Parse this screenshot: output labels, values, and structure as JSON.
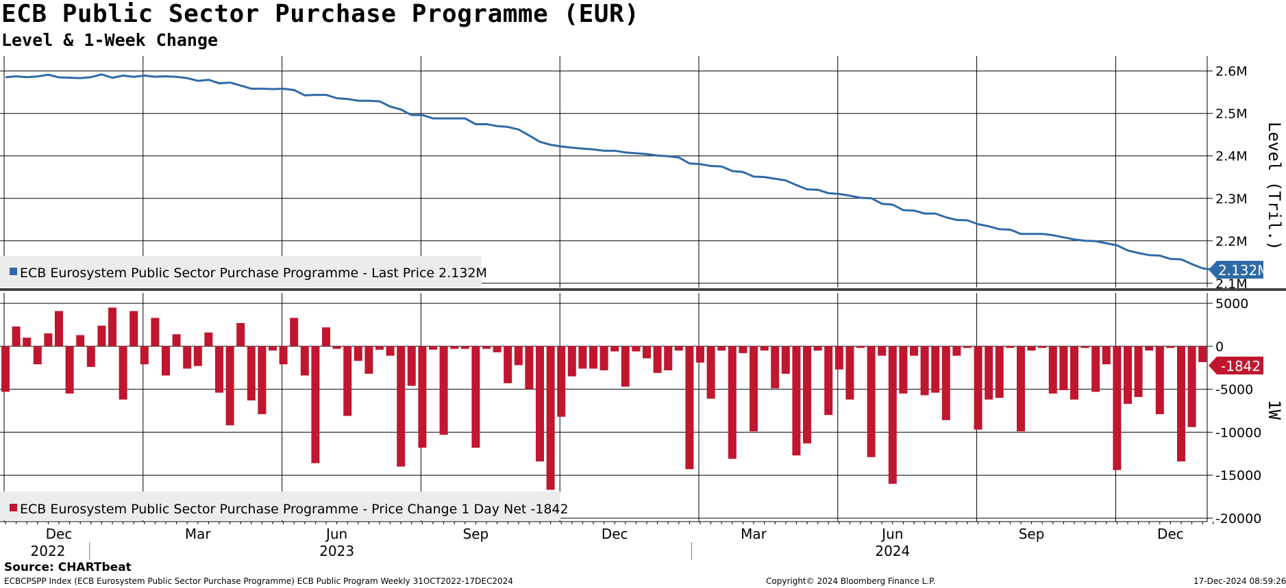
{
  "title": "ECB Public Sector Purchase Programme (EUR)",
  "subtitle": "Level & 1-Week Change",
  "source": "Source: CHARTbeat",
  "footer": {
    "left": "ECBCPSPP Index (ECB Eurosystem Public Sector Purchase Programme) ECB Public Program  Weekly 31OCT2022-17DEC2024",
    "center": "Copyright© 2024 Bloomberg Finance L.P.",
    "right": "17-Dec-2024 08:59:26"
  },
  "colors": {
    "level": "#2e6aa6",
    "change": "#c0162f",
    "grid": "#000000"
  },
  "chart_data": [
    {
      "type": "line",
      "ylabel": "Level (Tril.)",
      "ylim": [
        2.09,
        2.635
      ],
      "yticks": [
        2.1,
        2.2,
        2.3,
        2.4,
        2.5,
        2.6
      ],
      "ytick_labels": [
        "2.1M",
        "2.2M",
        "2.3M",
        "2.4M",
        "2.5M",
        "2.6M"
      ],
      "legend": "ECB Eurosystem Public Sector Purchase Programme - Last Price 2.132M",
      "last_value_label": "2.132M",
      "series": [
        {
          "name": "ECB Eurosystem Public Sector Purchase Programme",
          "values": [
            2.5852,
            2.5875,
            2.5855,
            2.5873,
            2.5912,
            2.585,
            2.5842,
            2.5832,
            2.5855,
            2.592,
            2.584,
            2.5892,
            2.5862,
            2.5892,
            2.5865,
            2.5875,
            2.5862,
            2.5832,
            2.5768,
            2.5792,
            2.571,
            2.5728,
            2.5658,
            2.5582,
            2.5582,
            2.5575,
            2.5582,
            2.5552,
            2.5428,
            2.5438,
            2.5438,
            2.5358,
            2.534,
            2.53,
            2.5298,
            2.5285,
            2.5162,
            2.5092,
            2.4962,
            2.4962,
            2.4882,
            2.4882,
            2.4882,
            2.4882,
            2.4745,
            2.4748,
            2.4702,
            2.4682,
            2.4622,
            2.4482,
            2.4332,
            2.4262,
            2.4222,
            2.4192,
            2.4172,
            2.4152,
            2.4122,
            2.4122,
            2.4082,
            2.4062,
            2.4042,
            2.4008,
            2.3992,
            2.3962,
            2.3822,
            2.3808,
            2.3762,
            2.3752,
            2.3642,
            2.3622,
            2.3512,
            2.3502,
            2.3462,
            2.3422,
            2.3312,
            2.3212,
            2.3202,
            2.3122,
            2.3102,
            2.3062,
            2.3012,
            2.3002,
            2.2872,
            2.2852,
            2.2722,
            2.2712,
            2.2642,
            2.2642,
            2.2552,
            2.2492,
            2.2482,
            2.2392,
            2.2342,
            2.2272,
            2.2262,
            2.2162,
            2.2162,
            2.2162,
            2.2132,
            2.2082,
            2.2032,
            2.2002,
            2.1992,
            2.1942,
            2.1892,
            2.1772,
            2.1712,
            2.1662,
            2.1652,
            2.1572,
            2.1562,
            2.1452,
            2.1352,
            2.132
          ]
        }
      ]
    },
    {
      "type": "bar",
      "ylabel": "1W",
      "ylim": [
        -20400,
        6200
      ],
      "yticks": [
        5000,
        0,
        -5000,
        -10000,
        -15000,
        -20000
      ],
      "ytick_labels": [
        "5000",
        "0",
        "-5000",
        "-10000",
        "-15000",
        "-20000"
      ],
      "legend": "ECB Eurosystem Public Sector Purchase Programme - Price Change 1 Day Net -1842",
      "last_value_label": "-1842",
      "x_labels": [
        {
          "month": "Dec",
          "year": "2022",
          "week": 5
        },
        {
          "month": "Mar",
          "week": 18
        },
        {
          "month": "Jun",
          "year": "2023",
          "week": 31
        },
        {
          "month": "Sep",
          "week": 44
        },
        {
          "month": "Dec",
          "week": 57
        },
        {
          "month": "Mar",
          "week": 70
        },
        {
          "month": "Jun",
          "year": "2024",
          "week": 83
        },
        {
          "month": "Sep",
          "week": 96
        },
        {
          "month": "Dec",
          "week": 109
        }
      ],
      "series": [
        {
          "name": "ECB Eurosystem Public Sector Purchase Programme",
          "values": [
            -5300,
            2300,
            1000,
            -2100,
            1500,
            4100,
            -5500,
            1300,
            -2400,
            2400,
            4500,
            -6200,
            4100,
            -2100,
            3300,
            -3400,
            1400,
            -2600,
            -2300,
            1600,
            -5400,
            -9200,
            2700,
            -6300,
            -7900,
            -500,
            -2100,
            3300,
            -3400,
            -13600,
            2200,
            -300,
            -8100,
            -1700,
            -3200,
            -400,
            -1100,
            -14000,
            -4600,
            -11800,
            -400,
            -10300,
            -300,
            -300,
            -11800,
            -300,
            -700,
            -4300,
            -2200,
            -5000,
            -13400,
            -16700,
            -8200,
            -3500,
            -2600,
            -2600,
            -2800,
            -600,
            -4700,
            -600,
            -1400,
            -3100,
            -2800,
            -500,
            -14300,
            -1900,
            -6100,
            -500,
            -13100,
            -800,
            -9900,
            -500,
            -4900,
            -3200,
            -12700,
            -11300,
            -500,
            -8000,
            -2700,
            -6200,
            -200,
            -12900,
            -1100,
            -16000,
            -5500,
            -1100,
            -5700,
            -5400,
            -8600,
            -1100,
            -200,
            -9700,
            -6200,
            -6000,
            -200,
            -9900,
            -500,
            -200,
            -5500,
            -5100,
            -6200,
            -200,
            -5300,
            -2100,
            -14400,
            -6700,
            -5900,
            -500,
            -7900,
            -200,
            -13400,
            -9400,
            -1842
          ]
        }
      ]
    }
  ]
}
